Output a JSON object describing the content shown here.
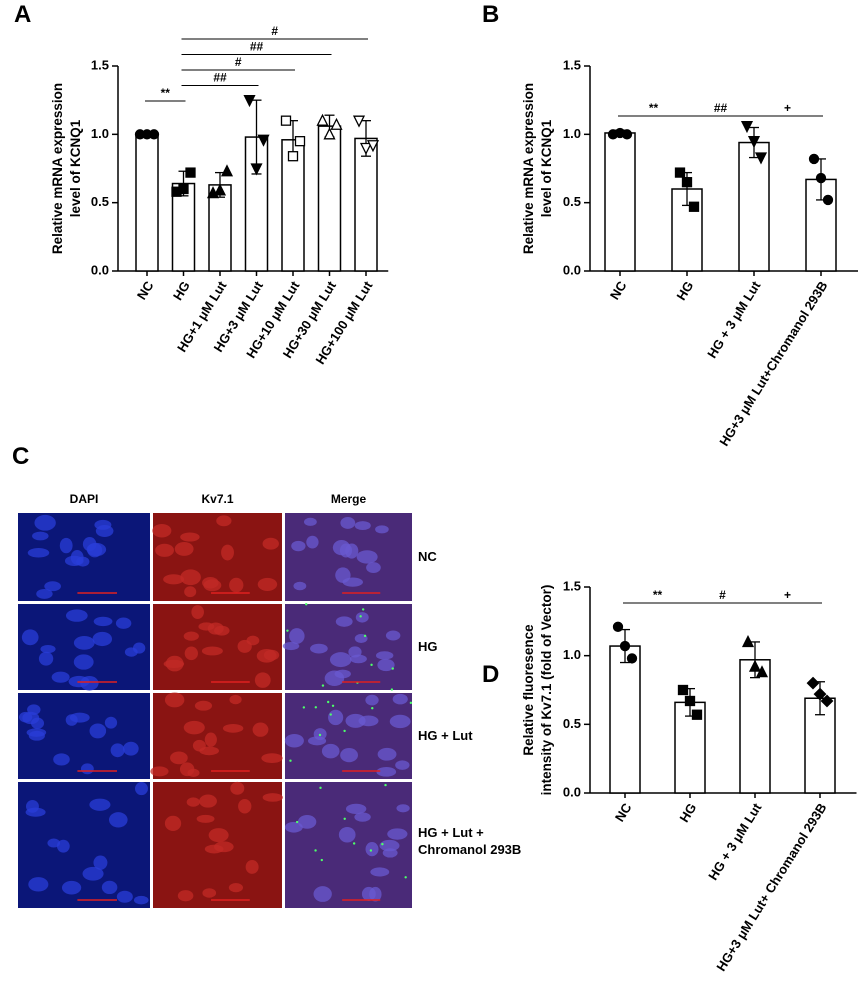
{
  "chart_data": [
    {
      "panel": "A",
      "type": "bar",
      "ylabel": [
        "Relative mRNA expression",
        "level of KCNQ1"
      ],
      "categories": [
        "NC",
        "HG",
        "HG+1 μM Lut",
        "HG+3 μM Lut",
        "HG+10 μM Lut",
        "HG+30 μM Lut",
        "HG+100 μM Lut"
      ],
      "values": [
        1.0,
        0.64,
        0.63,
        0.98,
        0.96,
        1.06,
        0.97
      ],
      "errors": [
        0.0,
        0.09,
        0.09,
        0.27,
        0.14,
        0.08,
        0.13
      ],
      "points": [
        [
          1.0,
          1.0,
          1.0
        ],
        [
          0.58,
          0.6,
          0.72
        ],
        [
          0.57,
          0.59,
          0.73
        ],
        [
          1.25,
          0.75,
          0.96
        ],
        [
          1.1,
          0.84,
          0.95
        ],
        [
          1.1,
          1.0,
          1.07
        ],
        [
          1.1,
          0.9,
          0.92
        ]
      ],
      "markers": [
        "circle",
        "square",
        "triangle",
        "triangle-down",
        "square",
        "triangle",
        "triangle-down"
      ],
      "marker_filled": [
        true,
        true,
        true,
        true,
        false,
        false,
        false
      ],
      "color": "#000000",
      "bar_fill": "#ffffff",
      "ylim": [
        0,
        1.5
      ],
      "yticks": [
        {
          "value": 0,
          "label": "0.0"
        },
        0.5,
        {
          "value": 1,
          "label": "1.0"
        },
        1.5
      ],
      "significance": [
        {
          "from": 0,
          "to": 1,
          "label": "**"
        },
        {
          "from": 1,
          "to": 3,
          "label": "##"
        },
        {
          "from": 1,
          "to": 4,
          "label": "#"
        },
        {
          "from": 1,
          "to": 5,
          "label": "##"
        },
        {
          "from": 1,
          "to": 6,
          "label": "#"
        }
      ]
    },
    {
      "panel": "B",
      "type": "bar",
      "ylabel": [
        "Relative mRNA expression",
        "level of KCNQ1"
      ],
      "categories": [
        "NC",
        "HG",
        "HG + 3 μM Lut",
        "HG+3 μM Lut+Chromanol 293B"
      ],
      "values": [
        1.01,
        0.6,
        0.94,
        0.67
      ],
      "errors": [
        0.02,
        0.12,
        0.11,
        0.15
      ],
      "points": [
        [
          1.0,
          1.01,
          1.0
        ],
        [
          0.72,
          0.65,
          0.47
        ],
        [
          1.06,
          0.95,
          0.83
        ],
        [
          0.82,
          0.68,
          0.52
        ]
      ],
      "markers": [
        "circle",
        "square",
        "triangle-down",
        "circle"
      ],
      "marker_filled": [
        true,
        true,
        true,
        true
      ],
      "color": "#000000",
      "bar_fill": "#ffffff",
      "ylim": [
        0,
        1.5
      ],
      "yticks": [
        {
          "value": 0,
          "label": "0.0"
        },
        0.5,
        {
          "value": 1,
          "label": "1.0"
        },
        1.5
      ],
      "significance": [
        {
          "from": 0,
          "to": 1,
          "label": "**"
        },
        {
          "from": 1,
          "to": 2,
          "label": "##"
        },
        {
          "from": 2,
          "to": 3,
          "label": "+"
        }
      ]
    },
    {
      "panel": "D",
      "type": "bar",
      "ylabel": [
        "Relative fluoresence",
        "intensity of Kv7.1 (fold of Vector)"
      ],
      "categories": [
        "NC",
        "HG",
        "HG + 3 μM Lut",
        "HG+3 μM Lut+ Chromanol 293B"
      ],
      "values": [
        1.07,
        0.66,
        0.97,
        0.69
      ],
      "errors": [
        0.12,
        0.1,
        0.13,
        0.12
      ],
      "points": [
        [
          1.21,
          1.07,
          0.98
        ],
        [
          0.75,
          0.67,
          0.57
        ],
        [
          1.1,
          0.92,
          0.88
        ],
        [
          0.8,
          0.72,
          0.67
        ]
      ],
      "markers": [
        "circle",
        "square",
        "triangle",
        "diamond"
      ],
      "marker_filled": [
        true,
        true,
        true,
        true
      ],
      "color": "#000000",
      "bar_fill": "#ffffff",
      "ylim": [
        0,
        1.5
      ],
      "yticks": [
        {
          "value": 0,
          "label": "0.0"
        },
        0.5,
        {
          "value": 1,
          "label": "1.0"
        },
        1.5
      ],
      "significance": [
        {
          "from": 0,
          "to": 1,
          "label": "**"
        },
        {
          "from": 1,
          "to": 2,
          "label": "#"
        },
        {
          "from": 2,
          "to": 3,
          "label": "+"
        }
      ]
    }
  ],
  "image_panel": {
    "label": "C",
    "columns": [
      "DAPI",
      "Kv7.1",
      "Merge"
    ],
    "rows": [
      "NC",
      "HG",
      "HG + Lut",
      [
        "HG + Lut +",
        "Chromanol 293B"
      ]
    ]
  }
}
